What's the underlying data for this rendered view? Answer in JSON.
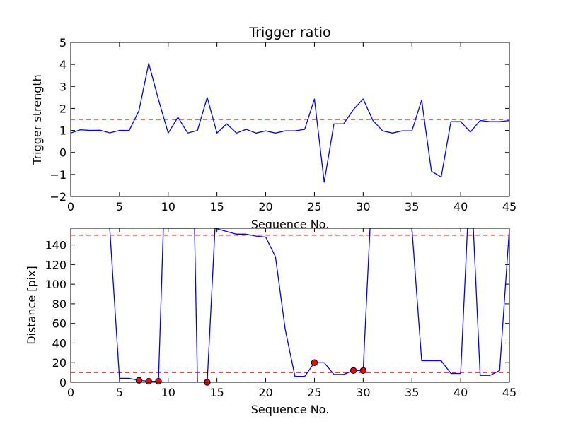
{
  "chart_data": [
    {
      "type": "line",
      "title": "Trigger ratio",
      "xlabel": "Sequence No.",
      "ylabel": "Trigger strength",
      "xlim": [
        0,
        45
      ],
      "ylim": [
        -2,
        5
      ],
      "xticks": [
        "0",
        "5",
        "10",
        "15",
        "20",
        "25",
        "30",
        "35",
        "40",
        "45"
      ],
      "yticks": [
        "−2",
        "−1",
        "0",
        "1",
        "2",
        "3",
        "4",
        "5"
      ],
      "series": [
        {
          "color": "#0000ff",
          "x": [
            0,
            1,
            2,
            3,
            4,
            5,
            6,
            7,
            8,
            9,
            10,
            11,
            12,
            13,
            14,
            15,
            16,
            17,
            18,
            19,
            20,
            21,
            22,
            23,
            24,
            25,
            26,
            27,
            28,
            29,
            30,
            31,
            32,
            33,
            34,
            35,
            36,
            37,
            38,
            39,
            40,
            41,
            42,
            43,
            44,
            45
          ],
          "y": [
            0.88,
            1.03,
            1.0,
            1.01,
            0.89,
            1.0,
            1.0,
            1.9,
            4.05,
            2.4,
            0.88,
            1.6,
            0.88,
            1.0,
            2.5,
            0.88,
            1.3,
            0.88,
            1.05,
            0.88,
            0.98,
            0.88,
            0.98,
            0.98,
            1.05,
            2.43,
            -1.35,
            1.3,
            1.3,
            1.95,
            2.43,
            1.45,
            0.98,
            0.88,
            0.98,
            0.98,
            2.38,
            -0.85,
            -1.12,
            1.4,
            1.4,
            0.93,
            1.45,
            1.4,
            1.4,
            1.45
          ]
        }
      ],
      "hlines": [
        {
          "y": 1.5,
          "color": "#ff0000",
          "style": "dashed"
        }
      ]
    },
    {
      "type": "line",
      "title": "",
      "xlabel": "Sequence No.",
      "ylabel": "Distance [pix]",
      "xlim": [
        0,
        45
      ],
      "ylim": [
        0,
        157
      ],
      "xticks": [
        "0",
        "5",
        "10",
        "15",
        "20",
        "25",
        "30",
        "35",
        "40",
        "45"
      ],
      "yticks": [
        "0",
        "20",
        "40",
        "60",
        "80",
        "100",
        "120",
        "140"
      ],
      "series": [
        {
          "color": "#0000ff",
          "x": [
            4,
            5,
            6,
            7,
            8,
            9,
            9.5,
            12.7,
            13,
            14,
            14.8,
            17,
            18,
            19,
            20,
            21,
            22,
            23,
            24,
            25,
            26,
            27,
            28,
            29,
            30,
            30.7,
            35,
            36,
            37,
            38,
            39,
            40,
            40.7,
            41.3,
            42,
            43,
            44,
            45
          ],
          "y": [
            157,
            4,
            4,
            2,
            1,
            1,
            157,
            157,
            0,
            0,
            157,
            151,
            151,
            149,
            148,
            128,
            54,
            6,
            6,
            20,
            20,
            8,
            8,
            12,
            12,
            157,
            157,
            22,
            22,
            22,
            9,
            9,
            157,
            157,
            7,
            7,
            12,
            157
          ]
        }
      ],
      "markers": {
        "color": "#ff0000",
        "x": [
          7,
          8,
          9,
          14,
          25,
          29,
          30
        ],
        "y": [
          2,
          1,
          1,
          0,
          20,
          12,
          12
        ]
      },
      "hlines": [
        {
          "y": 150,
          "color": "#ff0000",
          "style": "dashed"
        },
        {
          "y": 10,
          "color": "#ff0000",
          "style": "dashed"
        }
      ]
    }
  ]
}
